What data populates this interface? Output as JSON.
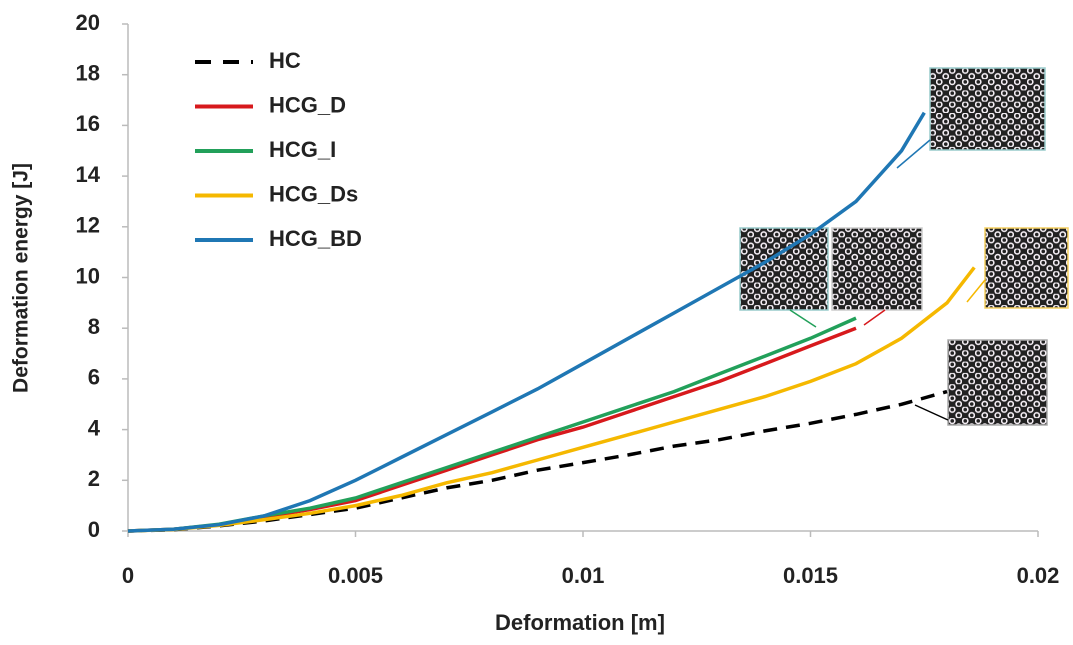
{
  "chart_data": {
    "type": "line",
    "xlabel": "Deformation [m]",
    "ylabel": "Deformation energy [J]",
    "xlim": [
      0,
      0.02
    ],
    "xticks": [
      0,
      0.005,
      0.01,
      0.015,
      0.02
    ],
    "ylim": [
      0,
      20
    ],
    "yticks": [
      0,
      2,
      4,
      6,
      8,
      10,
      12,
      14,
      16,
      18,
      20
    ],
    "legend": "upper left",
    "series": [
      {
        "name": "HC",
        "color": "#000000",
        "style": "dashed",
        "x": [
          0,
          0.001,
          0.002,
          0.003,
          0.004,
          0.005,
          0.006,
          0.007,
          0.008,
          0.009,
          0.01,
          0.011,
          0.012,
          0.013,
          0.014,
          0.015,
          0.016,
          0.017,
          0.018
        ],
        "values": [
          0,
          0.05,
          0.2,
          0.4,
          0.65,
          0.9,
          1.3,
          1.7,
          2.0,
          2.4,
          2.7,
          3.0,
          3.35,
          3.6,
          3.95,
          4.25,
          4.6,
          5.0,
          5.5
        ]
      },
      {
        "name": "HCG_D",
        "color": "#d7191c",
        "style": "solid",
        "x": [
          0,
          0.001,
          0.002,
          0.003,
          0.004,
          0.005,
          0.006,
          0.007,
          0.008,
          0.009,
          0.01,
          0.011,
          0.012,
          0.013,
          0.014,
          0.015,
          0.016
        ],
        "values": [
          0,
          0.07,
          0.25,
          0.55,
          0.85,
          1.2,
          1.8,
          2.4,
          3.0,
          3.6,
          4.1,
          4.7,
          5.3,
          5.9,
          6.6,
          7.3,
          8.0
        ]
      },
      {
        "name": "HCG_I",
        "color": "#22a05a",
        "style": "solid",
        "x": [
          0,
          0.001,
          0.002,
          0.003,
          0.004,
          0.005,
          0.006,
          0.007,
          0.008,
          0.009,
          0.01,
          0.011,
          0.012,
          0.013,
          0.014,
          0.015,
          0.016
        ],
        "values": [
          0,
          0.07,
          0.27,
          0.6,
          0.9,
          1.3,
          1.9,
          2.5,
          3.1,
          3.7,
          4.3,
          4.9,
          5.5,
          6.2,
          6.9,
          7.6,
          8.4
        ]
      },
      {
        "name": "HCG_Ds",
        "color": "#f5b800",
        "style": "solid",
        "x": [
          0,
          0.001,
          0.002,
          0.003,
          0.004,
          0.005,
          0.006,
          0.007,
          0.008,
          0.009,
          0.01,
          0.011,
          0.012,
          0.013,
          0.014,
          0.015,
          0.016,
          0.017,
          0.018,
          0.0186
        ],
        "values": [
          0,
          0.06,
          0.22,
          0.45,
          0.7,
          1.0,
          1.4,
          1.9,
          2.3,
          2.8,
          3.3,
          3.8,
          4.3,
          4.8,
          5.3,
          5.9,
          6.6,
          7.6,
          9.0,
          10.4
        ]
      },
      {
        "name": "HCG_BD",
        "color": "#1f77b4",
        "style": "solid",
        "x": [
          0,
          0.001,
          0.002,
          0.003,
          0.004,
          0.005,
          0.006,
          0.007,
          0.008,
          0.009,
          0.01,
          0.011,
          0.012,
          0.013,
          0.014,
          0.015,
          0.016,
          0.017,
          0.0175
        ],
        "values": [
          0,
          0.07,
          0.25,
          0.6,
          1.2,
          2.0,
          2.9,
          3.8,
          4.7,
          5.6,
          6.6,
          7.6,
          8.6,
          9.6,
          10.6,
          11.7,
          13.0,
          15.0,
          16.5
        ]
      }
    ]
  }
}
